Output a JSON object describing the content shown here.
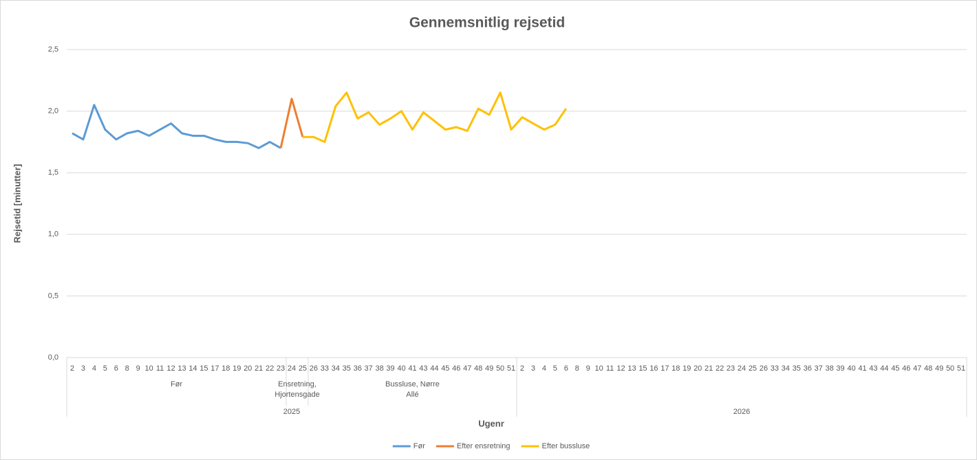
{
  "chart_data": {
    "type": "line",
    "title": "Gennemsnitlig rejsetid",
    "y_label": "Rejsetid [minutter]",
    "x_label": "Ugenr",
    "categories": [
      "2",
      "3",
      "4",
      "5",
      "6",
      "8",
      "9",
      "10",
      "11",
      "12",
      "13",
      "14",
      "15",
      "17",
      "18",
      "19",
      "20",
      "21",
      "22",
      "23",
      "24",
      "25",
      "26",
      "33",
      "34",
      "35",
      "36",
      "37",
      "38",
      "39",
      "40",
      "41",
      "43",
      "44",
      "45",
      "46",
      "47",
      "48",
      "49",
      "50",
      "51",
      "2",
      "3",
      "4",
      "5",
      "6",
      "8",
      "9",
      "10",
      "11",
      "12",
      "13",
      "15",
      "16",
      "17",
      "18",
      "19",
      "20",
      "21",
      "22",
      "23",
      "24",
      "25",
      "26",
      "33",
      "34",
      "35",
      "36",
      "37",
      "38",
      "39",
      "40",
      "41",
      "43",
      "44",
      "45",
      "46",
      "47",
      "48",
      "49",
      "50",
      "51"
    ],
    "groups": [
      {
        "name": "Før",
        "size": 20
      },
      {
        "name": "Ensretning, Hjortensgade",
        "size": 2
      },
      {
        "name": "Bussluse, Nørre Allé",
        "size": 19
      }
    ],
    "years": [
      {
        "name": "2025",
        "size": 41
      },
      {
        "name": "2026",
        "size": 41
      }
    ],
    "series": [
      {
        "name": "Før",
        "color": "#5b9bd5",
        "values": [
          1.82,
          1.77,
          2.05,
          1.85,
          1.77,
          1.82,
          1.84,
          1.8,
          1.85,
          1.9,
          1.82,
          1.8,
          1.8,
          1.77,
          1.75,
          1.75,
          1.74,
          1.7,
          1.75,
          1.7,
          null,
          null,
          null,
          null,
          null,
          null,
          null,
          null,
          null,
          null,
          null,
          null,
          null,
          null,
          null,
          null,
          null,
          null,
          null,
          null,
          null,
          null,
          null,
          null,
          null,
          null,
          null,
          null,
          null,
          null,
          null,
          null,
          null,
          null,
          null,
          null,
          null,
          null,
          null,
          null,
          null,
          null,
          null,
          null,
          null,
          null,
          null,
          null,
          null,
          null,
          null,
          null,
          null,
          null,
          null,
          null,
          null,
          null,
          null,
          null,
          null,
          null
        ]
      },
      {
        "name": "Efter ensretning",
        "color": "#ed7d31",
        "values": [
          null,
          null,
          null,
          null,
          null,
          null,
          null,
          null,
          null,
          null,
          null,
          null,
          null,
          null,
          null,
          null,
          null,
          null,
          null,
          1.7,
          2.1,
          1.79,
          null,
          null,
          null,
          null,
          null,
          null,
          null,
          null,
          null,
          null,
          null,
          null,
          null,
          null,
          null,
          null,
          null,
          null,
          null,
          null,
          null,
          null,
          null,
          null,
          null,
          null,
          null,
          null,
          null,
          null,
          null,
          null,
          null,
          null,
          null,
          null,
          null,
          null,
          null,
          null,
          null,
          null,
          null,
          null,
          null,
          null,
          null,
          null,
          null,
          null,
          null,
          null,
          null,
          null,
          null,
          null,
          null,
          null,
          null,
          null
        ]
      },
      {
        "name": "Efter bussluse",
        "color": "#ffc000",
        "values": [
          null,
          null,
          null,
          null,
          null,
          null,
          null,
          null,
          null,
          null,
          null,
          null,
          null,
          null,
          null,
          null,
          null,
          null,
          null,
          null,
          null,
          1.79,
          1.79,
          1.75,
          2.04,
          2.15,
          1.94,
          1.99,
          1.89,
          1.94,
          2.0,
          1.85,
          1.99,
          1.92,
          1.85,
          1.87,
          1.84,
          2.02,
          1.97,
          2.15,
          1.85,
          1.95,
          1.9,
          1.85,
          1.89,
          2.02,
          null,
          null,
          null,
          null,
          null,
          null,
          null,
          null,
          null,
          null,
          null,
          null,
          null,
          null,
          null,
          null,
          null,
          null,
          null,
          null,
          null,
          null,
          null,
          null,
          null,
          null,
          null,
          null,
          null,
          null,
          null,
          null,
          null,
          null,
          null,
          null
        ]
      }
    ],
    "ylim": [
      0,
      2.5
    ],
    "yticks": [
      {
        "value": 0,
        "label": "0,0"
      },
      {
        "value": 0.5,
        "label": "0,5"
      },
      {
        "value": 1,
        "label": "1,0"
      },
      {
        "value": 1.5,
        "label": "1,5"
      },
      {
        "value": 2,
        "label": "2,0"
      },
      {
        "value": 2.5,
        "label": "2,5"
      }
    ],
    "grid": true,
    "legend": "bottom"
  }
}
